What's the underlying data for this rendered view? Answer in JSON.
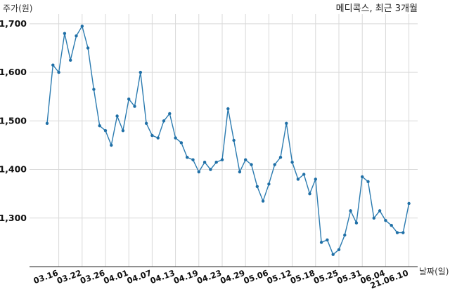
{
  "chart_data": {
    "type": "line",
    "title": "메디콕스, 최근 3개월",
    "ylabel": "주가(원)",
    "xlabel": "날짜(일)",
    "ylim": [
      1200,
      1720
    ],
    "yticks": [
      1300,
      1400,
      1500,
      1600,
      1700
    ],
    "ytick_labels": [
      "1,300",
      "1,400",
      "1,500",
      "1,600",
      "1,700"
    ],
    "grid": true,
    "x_tick_labels": [
      "03.16",
      "03.22",
      "03.26",
      "04.01",
      "04.07",
      "04.13",
      "04.19",
      "04.23",
      "04.29",
      "05.06",
      "05.12",
      "05.18",
      "05.25",
      "05.31",
      "06.04",
      "21.06.10"
    ],
    "x_tick_positions": [
      2,
      6,
      10,
      14,
      18,
      22,
      26,
      30,
      34,
      38,
      42,
      46,
      50,
      54,
      58,
      62
    ],
    "series": [
      {
        "values": [
          1495,
          1615,
          1600,
          1680,
          1625,
          1675,
          1695,
          1650,
          1565,
          1490,
          1480,
          1450,
          1510,
          1480,
          1545,
          1530,
          1600,
          1495,
          1470,
          1465,
          1500,
          1515,
          1465,
          1455,
          1425,
          1420,
          1395,
          1415,
          1400,
          1415,
          1420,
          1525,
          1460,
          1395,
          1420,
          1410,
          1365,
          1335,
          1370,
          1410,
          1425,
          1495,
          1415,
          1380,
          1390,
          1350,
          1380,
          1250,
          1255,
          1225,
          1235,
          1265,
          1315,
          1290,
          1385,
          1375,
          1300,
          1315,
          1295,
          1285,
          1270,
          1270,
          1330
        ]
      }
    ]
  }
}
